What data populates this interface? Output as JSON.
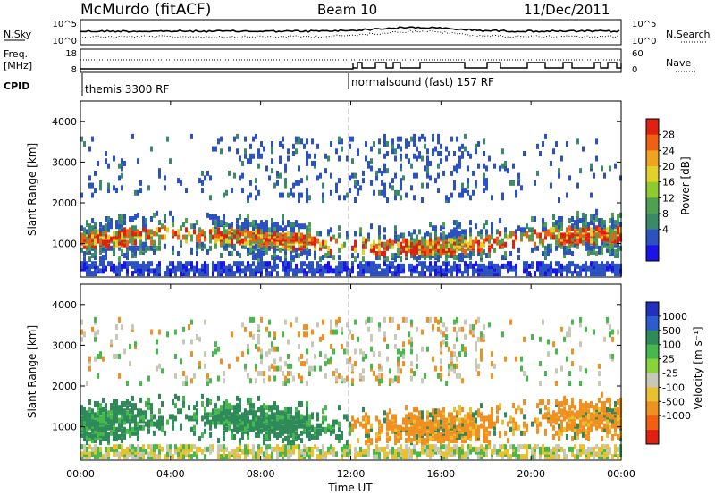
{
  "header": {
    "station": "McMurdo (fitACF)",
    "beam": "Beam 10",
    "date": "11/Dec/2011"
  },
  "noise_panel": {
    "left_label": "N.Sky",
    "right_label": "N.Search",
    "left_ticks": [
      "10^5",
      "10^0"
    ],
    "right_ticks": [
      "10^5",
      "10^0"
    ]
  },
  "freq_panel": {
    "left_label_1": "Freq.",
    "left_label_2": "[MHz]",
    "right_label": "Nave",
    "left_ticks": [
      "18",
      "8"
    ],
    "right_ticks": [
      "60",
      "0"
    ]
  },
  "cpid_panel": {
    "label": "CPID",
    "mode_1": "themis 3300 RF",
    "mode_2": "normalsound (fast) 157 RF"
  },
  "chart_data": [
    {
      "type": "heatmap",
      "title": "Power",
      "ylabel": "Slant Range [km]",
      "ylim": [
        180,
        4500
      ],
      "yticks": [
        "1000",
        "2000",
        "3000",
        "4000"
      ],
      "colorbar_label": "Power [dB]",
      "colorbar_ticks": [
        "28",
        "24",
        "20",
        "16",
        "12",
        "8",
        "4"
      ],
      "colorbar_colors": [
        "#1a14e8",
        "#2b52c0",
        "#3a8a6a",
        "#4fa050",
        "#8ccc2c",
        "#e0d22a",
        "#f2a21e",
        "#f06010",
        "#e02010"
      ]
    },
    {
      "type": "heatmap",
      "title": "Velocity",
      "ylabel": "Slant Range [km]",
      "ylim": [
        180,
        4500
      ],
      "yticks": [
        "1000",
        "2000",
        "3000",
        "4000"
      ],
      "colorbar_label": "Velocity [m s⁻¹]",
      "colorbar_ticks": [
        "1000",
        "500",
        "100",
        "25",
        "-25",
        "-100",
        "-500",
        "-1000"
      ],
      "colorbar_colors": [
        "#2030c0",
        "#2c5cd0",
        "#2f8a5a",
        "#46b84c",
        "#86d43a",
        "#c8c8b8",
        "#e8c030",
        "#f09020",
        "#f06010",
        "#e02010"
      ]
    }
  ],
  "x_axis": {
    "label": "Time UT",
    "ticks": [
      "00:00",
      "04:00",
      "08:00",
      "12:00",
      "16:00",
      "20:00",
      "00:00"
    ]
  }
}
